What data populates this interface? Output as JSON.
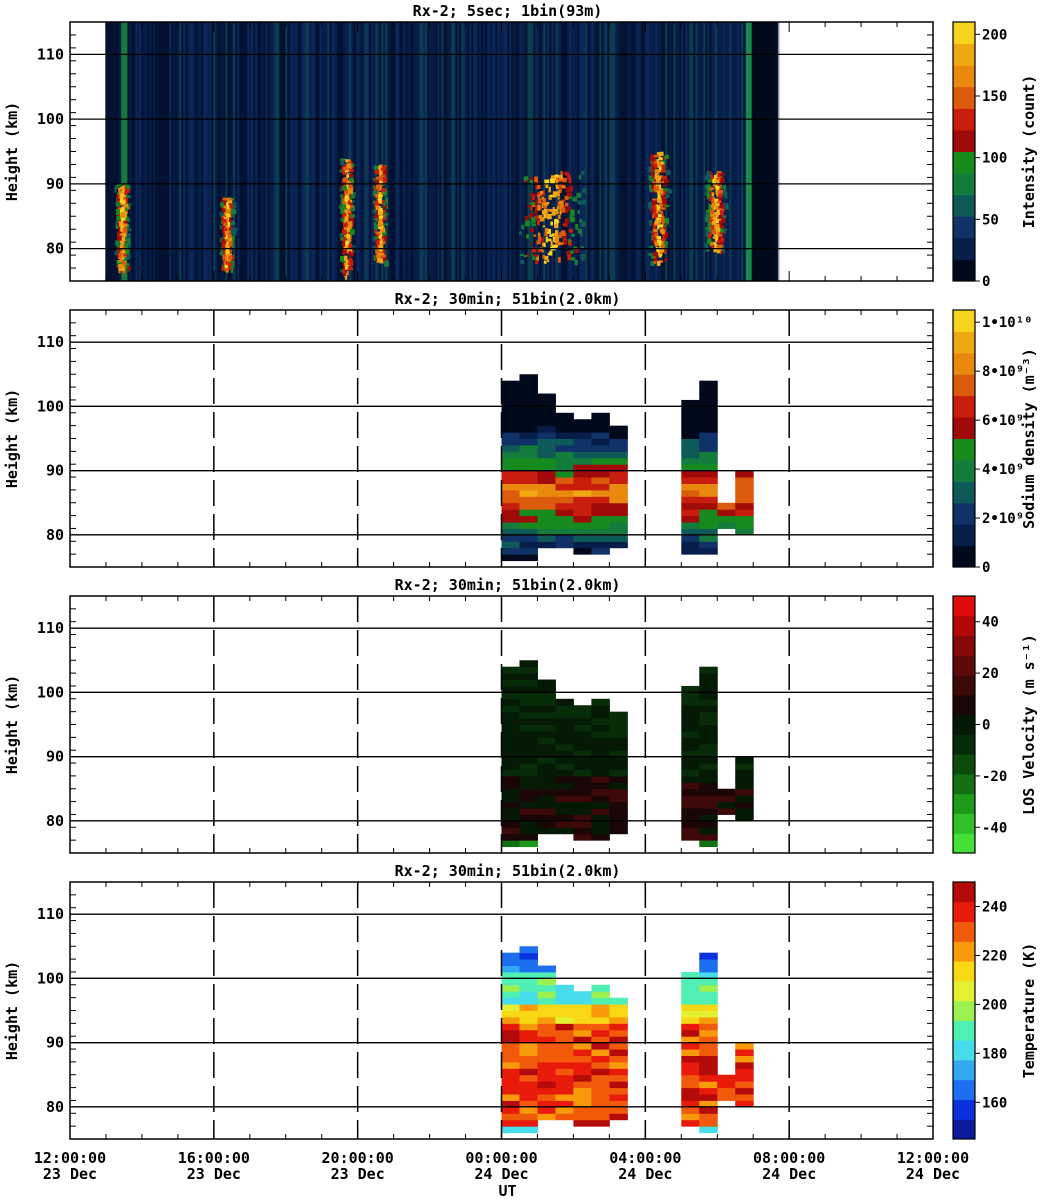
{
  "chart_data": [
    {
      "type": "heatmap",
      "title": "Rx-2;  5sec; 1bin(93m)",
      "ylabel": "Height (km)",
      "ylim": [
        75,
        115
      ],
      "yticks": [
        80,
        90,
        100,
        110
      ],
      "xlim_hours": [
        0,
        24
      ],
      "colorbar": {
        "label": "Intensity (count)",
        "range": [
          0,
          210
        ],
        "ticks": [
          "0",
          "50",
          "100",
          "150",
          "200"
        ],
        "tick_values": [
          0,
          50,
          100,
          150,
          200
        ],
        "colors": [
          "#000a1c",
          "#081e4a",
          "#103268",
          "#0e5a58",
          "#137c3c",
          "#178a1e",
          "#a00a08",
          "#c81c0c",
          "#dc5a0c",
          "#e8880e",
          "#f0a812",
          "#f8d41e"
        ]
      },
      "data_extent": {
        "start": "12:59",
        "end": "07:41"
      },
      "bursts": [
        {
          "center": "13:25",
          "height_range": [
            77,
            90
          ]
        },
        {
          "center": "16:20",
          "height_range": [
            77,
            88
          ]
        },
        {
          "center": "19:40",
          "height_range": [
            76,
            94
          ]
        },
        {
          "center": "20:35",
          "height_range": [
            78,
            93
          ]
        },
        {
          "center": "01:20",
          "height_range": [
            78,
            92
          ]
        },
        {
          "center": "04:20",
          "height_range": [
            78,
            95
          ]
        },
        {
          "center": "05:55",
          "height_range": [
            80,
            92
          ]
        }
      ]
    },
    {
      "type": "heatmap",
      "title": "Rx-2; 30min; 51bin(2.0km)",
      "ylabel": "Height (km)",
      "ylim": [
        75,
        115
      ],
      "yticks": [
        80,
        90,
        100,
        110
      ],
      "colorbar": {
        "label": "Sodium density (m⁻³)",
        "range": [
          0,
          10500000000.0
        ],
        "ticks": [
          "0",
          "2•10⁹",
          "4•10⁹",
          "6•10⁹",
          "8•10⁹",
          "1•10¹⁰"
        ],
        "tick_values": [
          0,
          2000000000.0,
          4000000000.0,
          6000000000.0,
          8000000000.0,
          10000000000.0
        ],
        "colors": [
          "#000a1c",
          "#081e4a",
          "#103268",
          "#0e5a58",
          "#137c3c",
          "#178a1e",
          "#a00a08",
          "#c81c0c",
          "#dc5a0c",
          "#e8880e",
          "#f0a812",
          "#f8d41e"
        ]
      },
      "columns": [
        {
          "time": "00:00",
          "bottom": 76,
          "top": 104
        },
        {
          "time": "00:30",
          "bottom": 76,
          "top": 105
        },
        {
          "time": "01:00",
          "bottom": 78,
          "top": 102
        },
        {
          "time": "01:30",
          "bottom": 78,
          "top": 99
        },
        {
          "time": "02:00",
          "bottom": 77,
          "top": 98
        },
        {
          "time": "02:30",
          "bottom": 77,
          "top": 99
        },
        {
          "time": "03:00",
          "bottom": 78,
          "top": 97
        },
        {
          "time": "05:00",
          "bottom": 77,
          "top": 101
        },
        {
          "time": "05:30",
          "bottom": 77,
          "top": 104
        },
        {
          "time": "06:00",
          "bottom": 81,
          "top": 85
        },
        {
          "time": "06:30",
          "bottom": 80,
          "top": 90
        }
      ]
    },
    {
      "type": "heatmap",
      "title": "Rx-2; 30min; 51bin(2.0km)",
      "ylabel": "Height (km)",
      "ylim": [
        75,
        115
      ],
      "yticks": [
        80,
        90,
        100,
        110
      ],
      "colorbar": {
        "label": "LOS Velocity (m s⁻¹)",
        "range": [
          -50,
          50
        ],
        "ticks": [
          "-40",
          "-20",
          "0",
          "20",
          "40"
        ],
        "tick_values": [
          -40,
          -20,
          0,
          20,
          40
        ],
        "colors": [
          "#44e038",
          "#30c028",
          "#1e9a1a",
          "#127012",
          "#0b4c0c",
          "#072c08",
          "#041a04",
          "#1a0606",
          "#3c0808",
          "#5e0808",
          "#860808",
          "#b00808",
          "#e00c0c"
        ]
      },
      "columns": [
        {
          "time": "00:00",
          "bottom": 76,
          "top": 104
        },
        {
          "time": "00:30",
          "bottom": 76,
          "top": 105
        },
        {
          "time": "01:00",
          "bottom": 78,
          "top": 102
        },
        {
          "time": "01:30",
          "bottom": 78,
          "top": 99
        },
        {
          "time": "02:00",
          "bottom": 77,
          "top": 98
        },
        {
          "time": "02:30",
          "bottom": 77,
          "top": 99
        },
        {
          "time": "03:00",
          "bottom": 78,
          "top": 97
        },
        {
          "time": "05:00",
          "bottom": 77,
          "top": 101
        },
        {
          "time": "05:30",
          "bottom": 76,
          "top": 104
        },
        {
          "time": "06:00",
          "bottom": 81,
          "top": 85
        },
        {
          "time": "06:30",
          "bottom": 80,
          "top": 90
        }
      ]
    },
    {
      "type": "heatmap",
      "title": "Rx-2; 30min; 51bin(2.0km)",
      "ylabel": "Height (km)",
      "ylim": [
        75,
        115
      ],
      "yticks": [
        80,
        90,
        100,
        110
      ],
      "colorbar": {
        "label": "Temperature (K)",
        "range": [
          145,
          250
        ],
        "ticks": [
          "160",
          "180",
          "200",
          "220",
          "240"
        ],
        "tick_values": [
          160,
          180,
          200,
          220,
          240
        ],
        "colors": [
          "#0a1a9a",
          "#0a32dc",
          "#1e6ef0",
          "#32a8f0",
          "#46dcec",
          "#50f0b4",
          "#9cf050",
          "#e4f032",
          "#f8d814",
          "#f89a0a",
          "#f05a0a",
          "#e81a0a",
          "#b40a0a"
        ]
      },
      "columns": [
        {
          "time": "00:00",
          "bottom": 76,
          "top": 104
        },
        {
          "time": "00:30",
          "bottom": 76,
          "top": 105
        },
        {
          "time": "01:00",
          "bottom": 78,
          "top": 102
        },
        {
          "time": "01:30",
          "bottom": 78,
          "top": 99
        },
        {
          "time": "02:00",
          "bottom": 77,
          "top": 98
        },
        {
          "time": "02:30",
          "bottom": 77,
          "top": 99
        },
        {
          "time": "03:00",
          "bottom": 78,
          "top": 97
        },
        {
          "time": "05:00",
          "bottom": 77,
          "top": 101
        },
        {
          "time": "05:30",
          "bottom": 76,
          "top": 104
        },
        {
          "time": "06:00",
          "bottom": 81,
          "top": 85
        },
        {
          "time": "06:30",
          "bottom": 80,
          "top": 90
        }
      ]
    }
  ],
  "x_axis": {
    "label": "UT",
    "ticks": [
      {
        "time": "12:00:00",
        "date": "23 Dec"
      },
      {
        "time": "16:00:00",
        "date": "23 Dec"
      },
      {
        "time": "20:00:00",
        "date": "23 Dec"
      },
      {
        "time": "00:00:00",
        "date": "24 Dec"
      },
      {
        "time": "04:00:00",
        "date": "24 Dec"
      },
      {
        "time": "08:00:00",
        "date": "24 Dec"
      },
      {
        "time": "12:00:00",
        "date": "24 Dec"
      }
    ]
  }
}
